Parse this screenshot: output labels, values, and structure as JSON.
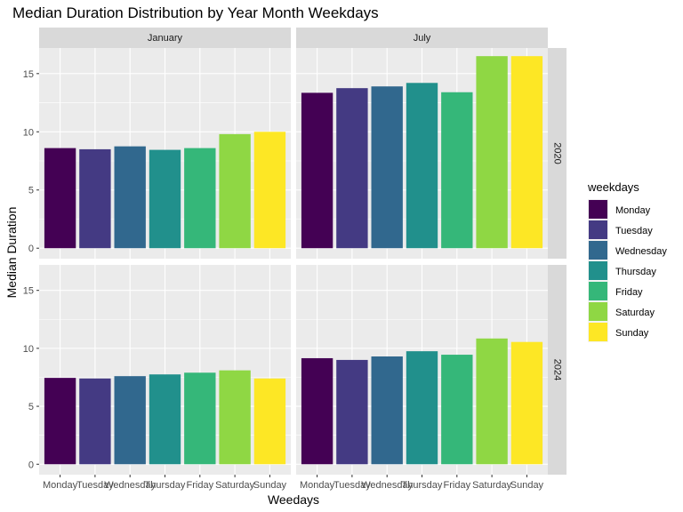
{
  "chart_data": {
    "type": "bar",
    "title": "Median Duration Distribution by Year Month Weekdays",
    "xlabel": "Weedays",
    "ylabel": "Median Duration",
    "categories": [
      "Monday",
      "Tuesday",
      "Wednesday",
      "Thursday",
      "Friday",
      "Saturday",
      "Sunday"
    ],
    "ylim": [
      -0.9,
      17.2
    ],
    "yticks": [
      0,
      5,
      10,
      15
    ],
    "legend": {
      "title": "weekdays",
      "position": "right",
      "entries": [
        "Monday",
        "Tuesday",
        "Wednesday",
        "Thursday",
        "Friday",
        "Saturday",
        "Sunday"
      ]
    },
    "colors": {
      "Monday": "#440154",
      "Tuesday": "#443A83",
      "Wednesday": "#31688E",
      "Thursday": "#21908C",
      "Friday": "#35B779",
      "Saturday": "#8FD744",
      "Sunday": "#FDE725"
    },
    "col_facets": [
      "January",
      "July"
    ],
    "row_facets": [
      "2020",
      "2024"
    ],
    "panels": [
      {
        "month": "January",
        "year": "2020",
        "values": [
          8.6,
          8.5,
          8.75,
          8.45,
          8.6,
          9.8,
          10.0
        ]
      },
      {
        "month": "July",
        "year": "2020",
        "values": [
          13.35,
          13.75,
          13.9,
          14.2,
          13.4,
          16.5,
          16.5
        ]
      },
      {
        "month": "January",
        "year": "2024",
        "values": [
          7.45,
          7.4,
          7.6,
          7.75,
          7.9,
          8.1,
          7.4
        ]
      },
      {
        "month": "July",
        "year": "2024",
        "values": [
          9.15,
          9.0,
          9.3,
          9.75,
          9.45,
          10.85,
          10.55
        ]
      }
    ],
    "grid": true,
    "panel_background": "#EBEBEB",
    "strip_background": "#D9D9D9"
  }
}
